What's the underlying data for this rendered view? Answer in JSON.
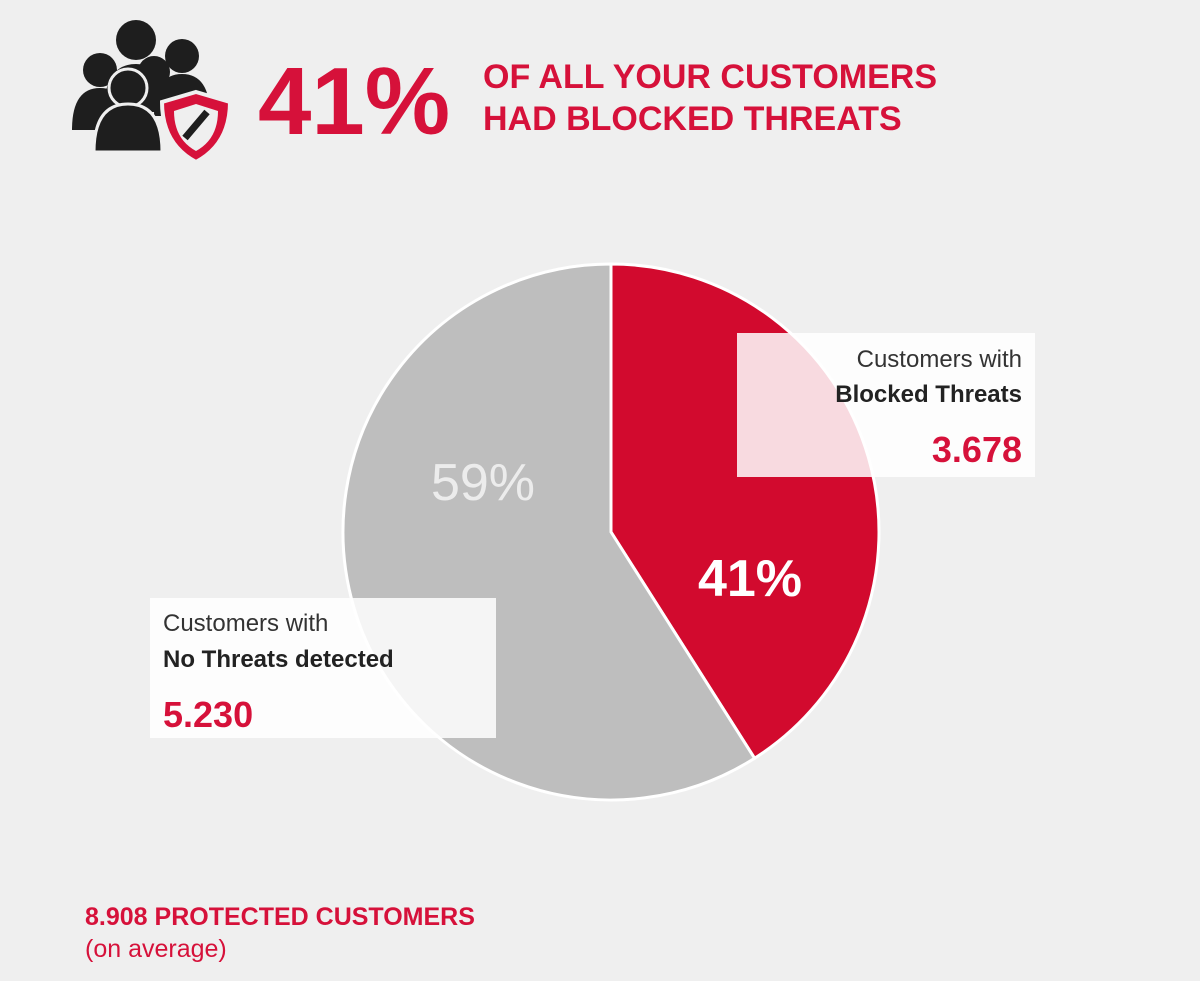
{
  "chart_data": {
    "type": "pie",
    "headline": {
      "value": "41%",
      "lines": [
        "OF ALL YOUR CUSTOMERS",
        "HAD BLOCKED THREATS"
      ]
    },
    "categories": [
      "Blocked Threats",
      "No Threats detected"
    ],
    "values": [
      41,
      59
    ],
    "value_labels": [
      "41%",
      "59%"
    ],
    "colors": [
      "#d20a2e",
      "#bebebe"
    ],
    "callouts": [
      {
        "prefix": "Customers with",
        "count": "3.678"
      },
      {
        "prefix": "Customers with",
        "count": "5.230"
      }
    ],
    "footer": {
      "total": "8.908",
      "text": "PROTECTED CUSTOMERS",
      "note": "(on average)"
    }
  }
}
